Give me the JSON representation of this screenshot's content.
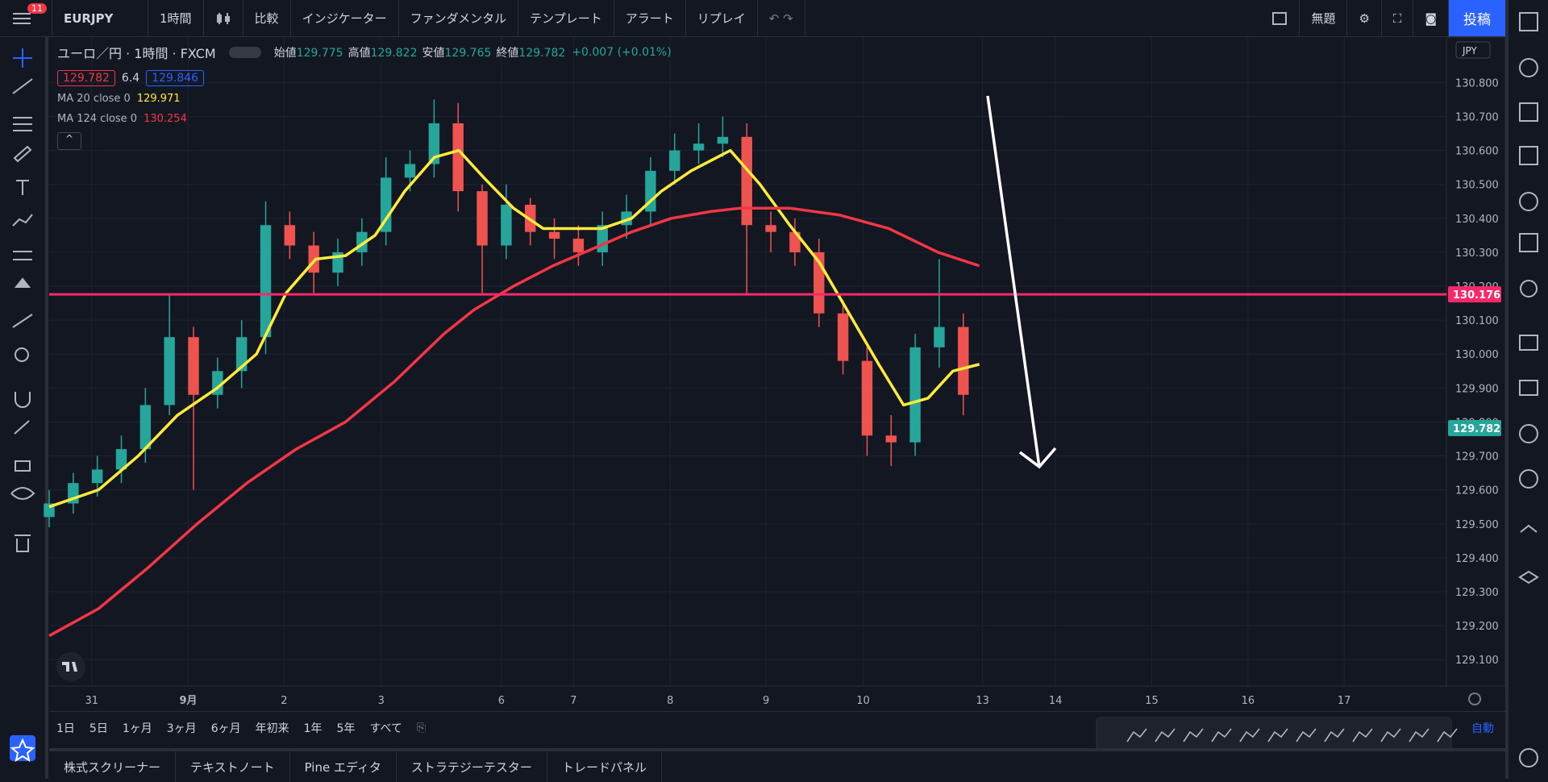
{
  "toolbar": {
    "badge": "11",
    "symbol": "EURJPY",
    "interval": "1時間",
    "items": [
      "比較",
      "インジケーター",
      "ファンダメンタル",
      "テンプレート",
      "アラート",
      "リプレイ"
    ],
    "layout": "無題",
    "publish": "投稿"
  },
  "legend": {
    "title": "ユーロ／円 · 1時間 · FXCM",
    "ohlc": [
      {
        "label": "始値",
        "value": 129.775
      },
      {
        "label": "高値",
        "value": 129.822
      },
      {
        "label": "安値",
        "value": 129.765
      },
      {
        "label": "終値",
        "value": 129.782
      }
    ],
    "change": "+0.007 (+0.01%)",
    "bid": 129.782,
    "spread": 6.4,
    "ask": 129.846,
    "ma": [
      {
        "label": "MA 20 close 0",
        "value": 129.971,
        "color": "#ffeb3b"
      },
      {
        "label": "MA 124 close 0",
        "value": 130.254,
        "color": "#f23645"
      }
    ]
  },
  "chart_data": {
    "type": "candlestick",
    "currency": "JPY",
    "xlim": [
      0,
      348.5
    ],
    "ylim": [
      129.022,
      130.934
    ],
    "yticks": [
      {
        "value": 129.1,
        "label": "129.100"
      },
      {
        "value": 129.2,
        "label": "129.200"
      },
      {
        "value": 129.3,
        "label": "129.300"
      },
      {
        "value": 129.4,
        "label": "129.400"
      },
      {
        "value": 129.5,
        "label": "129.500"
      },
      {
        "value": 129.6,
        "label": "129.600"
      },
      {
        "value": 129.7,
        "label": "129.700"
      },
      {
        "value": 129.8,
        "label": "129.800"
      },
      {
        "value": 129.9,
        "label": "129.900"
      },
      {
        "value": 130.0,
        "label": "130.000"
      },
      {
        "value": 130.1,
        "label": "130.100"
      },
      {
        "value": 130.2,
        "label": "130.200"
      },
      {
        "value": 130.3,
        "label": "130.300"
      },
      {
        "value": 130.4,
        "label": "130.400"
      },
      {
        "value": 130.5,
        "label": "130.500"
      },
      {
        "value": 130.6,
        "label": "130.600"
      },
      {
        "value": 130.7,
        "label": "130.700"
      },
      {
        "value": 130.8,
        "label": "130.800"
      }
    ],
    "xticks": [
      {
        "value": 10.6,
        "label": "31"
      },
      {
        "value": 34.7,
        "label": "9月"
      },
      {
        "value": 58.6,
        "label": "2"
      },
      {
        "value": 82.8,
        "label": "3"
      },
      {
        "value": 112.8,
        "label": "6"
      },
      {
        "value": 130.8,
        "label": "7"
      },
      {
        "value": 154.9,
        "label": "8"
      },
      {
        "value": 178.8,
        "label": "9"
      },
      {
        "value": 203,
        "label": "10"
      },
      {
        "value": 232.8,
        "label": "13"
      },
      {
        "value": 251,
        "label": "14"
      },
      {
        "value": 275,
        "label": "15"
      },
      {
        "value": 299,
        "label": "16"
      },
      {
        "value": 323,
        "label": "17"
      }
    ],
    "grid": true,
    "up_color": "#26a69a",
    "down_color": "#ef5350",
    "x": [
      0,
      6,
      12,
      18,
      24,
      30,
      36,
      42,
      48,
      54,
      60,
      66,
      72,
      78,
      84,
      90,
      96,
      102,
      108,
      114,
      120,
      126,
      132,
      138,
      144,
      150,
      156,
      162,
      168,
      174,
      180,
      186,
      192,
      198,
      204,
      210,
      216,
      222,
      228
    ],
    "open": [
      129.52,
      129.56,
      129.62,
      129.66,
      129.72,
      129.85,
      130.05,
      129.88,
      129.95,
      130.05,
      130.38,
      130.32,
      130.24,
      130.3,
      130.36,
      130.52,
      130.56,
      130.68,
      130.48,
      130.32,
      130.44,
      130.36,
      130.34,
      130.3,
      130.38,
      130.42,
      130.54,
      130.6,
      130.62,
      130.64,
      130.38,
      130.36,
      130.3,
      130.12,
      129.98,
      129.76,
      129.74,
      130.02,
      130.08
    ],
    "high": [
      129.6,
      129.65,
      129.7,
      129.76,
      129.9,
      130.18,
      130.08,
      129.99,
      130.1,
      130.45,
      130.42,
      130.36,
      130.34,
      130.4,
      130.58,
      130.6,
      130.75,
      130.74,
      130.5,
      130.5,
      130.46,
      130.4,
      130.38,
      130.42,
      130.47,
      130.58,
      130.65,
      130.68,
      130.7,
      130.68,
      130.42,
      130.4,
      130.34,
      130.16,
      130.02,
      129.82,
      130.06,
      130.28,
      130.12
    ],
    "low": [
      129.49,
      129.53,
      129.58,
      129.62,
      129.68,
      129.82,
      129.6,
      129.84,
      129.9,
      130.0,
      130.28,
      130.18,
      130.2,
      130.26,
      130.32,
      130.48,
      130.52,
      130.42,
      130.18,
      130.28,
      130.32,
      130.28,
      130.26,
      130.26,
      130.34,
      130.38,
      130.5,
      130.56,
      130.58,
      130.18,
      130.3,
      130.26,
      130.08,
      129.94,
      129.7,
      129.67,
      129.7,
      129.96,
      129.82
    ],
    "close": [
      129.56,
      129.62,
      129.66,
      129.72,
      129.85,
      130.05,
      129.88,
      129.95,
      130.05,
      130.38,
      130.32,
      130.24,
      130.3,
      130.36,
      130.52,
      130.56,
      130.68,
      130.48,
      130.32,
      130.44,
      130.36,
      130.34,
      130.3,
      130.38,
      130.42,
      130.54,
      130.6,
      130.62,
      130.64,
      130.38,
      130.36,
      130.3,
      130.12,
      129.98,
      129.76,
      129.74,
      130.02,
      130.08,
      129.88
    ],
    "series": [
      {
        "name": "MA 20",
        "color": "#ffeb3b",
        "x": [
          0,
          12.3,
          22.2,
          32,
          41.9,
          51.7,
          59.1,
          66.5,
          73.9,
          81.3,
          88.7,
          96.1,
          102.2,
          108.4,
          115.8,
          123.2,
          130.5,
          137.9,
          145.3,
          152.7,
          160.1,
          169.9,
          177.3,
          184.7,
          192.1,
          199.5,
          206.9,
          213.1,
          219.2,
          225.4,
          232
        ],
        "values": [
          129.55,
          129.6,
          129.7,
          129.82,
          129.9,
          130.0,
          130.18,
          130.28,
          130.29,
          130.35,
          130.48,
          130.58,
          130.6,
          130.52,
          130.43,
          130.37,
          130.37,
          130.37,
          130.4,
          130.48,
          130.54,
          130.6,
          130.5,
          130.38,
          130.27,
          130.12,
          129.97,
          129.85,
          129.87,
          129.95,
          129.97
        ]
      },
      {
        "name": "MA 124",
        "color": "#f23645",
        "x": [
          0,
          12.3,
          24.6,
          36.9,
          49.3,
          61.6,
          73.9,
          86.2,
          98.5,
          105.9,
          115.8,
          125.6,
          135.5,
          145.3,
          155.2,
          165,
          172.4,
          184.7,
          197,
          209.4,
          221.7,
          232
        ],
        "values": [
          129.17,
          129.25,
          129.37,
          129.5,
          129.62,
          129.72,
          129.8,
          129.92,
          130.06,
          130.13,
          130.2,
          130.26,
          130.31,
          130.36,
          130.4,
          130.42,
          130.43,
          130.43,
          130.41,
          130.37,
          130.3,
          130.26
        ]
      }
    ],
    "hline": {
      "value": 130.176,
      "color": "#f7296b"
    },
    "last_price": {
      "value": 129.782,
      "color": "#26a69a"
    }
  },
  "range_bar": {
    "ranges": [
      "1日",
      "5日",
      "1ヶ月",
      "3ヶ月",
      "6ヶ月",
      "年初来",
      "1年",
      "5年",
      "すべて"
    ],
    "auto": "自動"
  },
  "bottom_tabs": [
    "株式スクリーナー",
    "テキストノート",
    "Pine エディタ",
    "ストラテジーテスター",
    "トレードパネル"
  ]
}
